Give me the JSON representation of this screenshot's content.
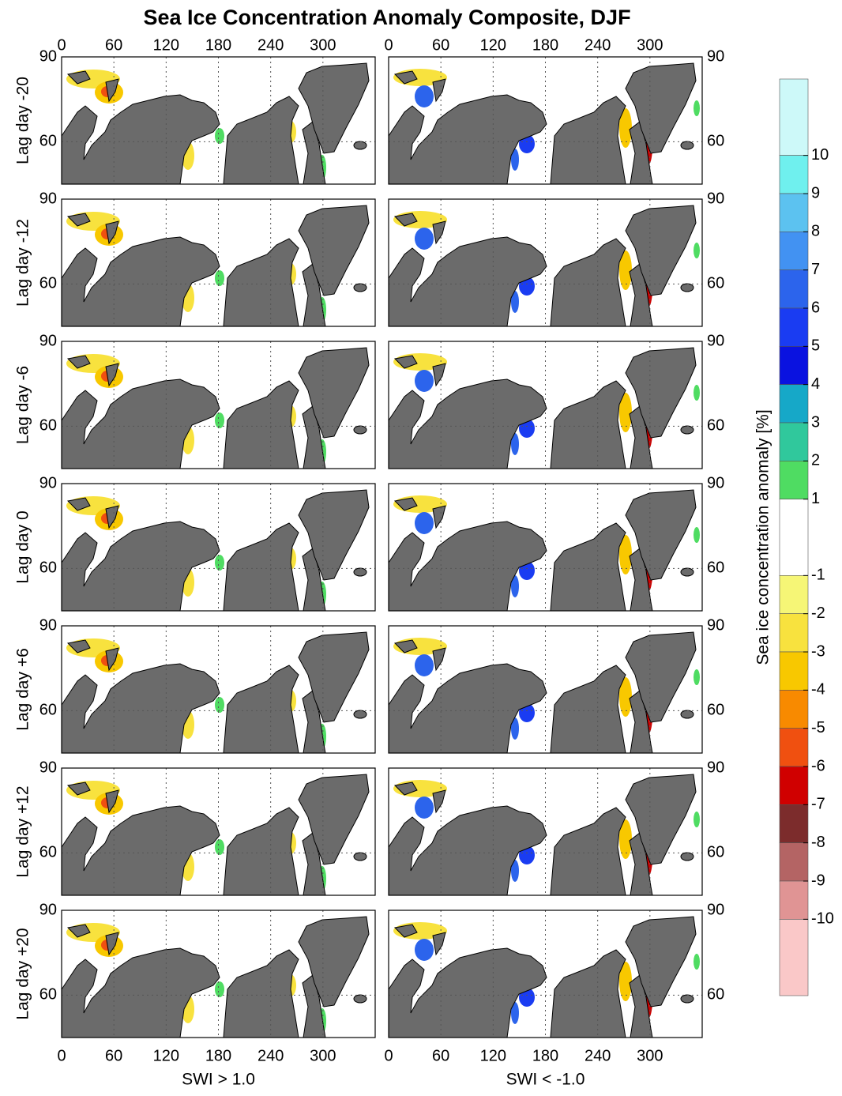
{
  "chart_data": {
    "type": "map",
    "title": "Sea Ice Concentration Anomaly Composite, DJF",
    "rows": [
      "Lag day -20",
      "Lag day -12",
      "Lag day -6",
      "Lag day 0",
      "Lag day +6",
      "Lag day +12",
      "Lag day +20"
    ],
    "columns": [
      "SWI > 1.0",
      "SWI < -1.0"
    ],
    "xlim": [
      0,
      360
    ],
    "xticks": [
      0,
      60,
      120,
      180,
      240,
      300
    ],
    "ylim": [
      45,
      90
    ],
    "yticks": [
      60,
      90
    ],
    "grid": true,
    "colorbar": {
      "label": "Sea ice concentration anomaly [%]",
      "ticks": [
        10,
        9,
        8,
        7,
        6,
        5,
        4,
        3,
        2,
        1,
        -1,
        -2,
        -3,
        -4,
        -5,
        -6,
        -7,
        -8,
        -9,
        -10
      ],
      "colors": [
        "#cdf9f9",
        "#6ff0ee",
        "#5cc2f0",
        "#4292f2",
        "#2c64ec",
        "#1a3cf2",
        "#0a12e0",
        "#16a8c8",
        "#30c89c",
        "#4fdc62",
        "#ffffff",
        "#f6f676",
        "#f8e23e",
        "#f8c800",
        "#f88a00",
        "#f05010",
        "#d00000",
        "#7c2c2c",
        "#b46464",
        "#e09494",
        "#fac8c8"
      ]
    }
  }
}
